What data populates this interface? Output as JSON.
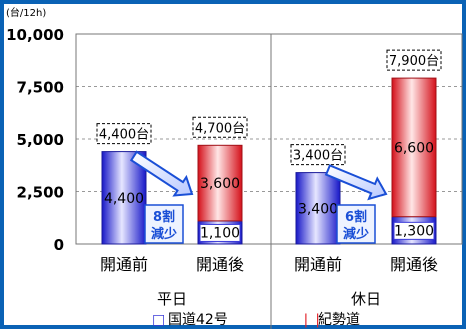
{
  "chart_data": {
    "type": "bar",
    "stacked": true,
    "unit_label": "(台/12h)",
    "y_ticks": [
      "10,000",
      "7,500",
      "5,000",
      "2,500",
      "0"
    ],
    "ylim": [
      0,
      10000
    ],
    "grid": true,
    "categories": [
      "開通前",
      "開通後",
      "開通前",
      "開通後"
    ],
    "groups": [
      "平日",
      "休日"
    ],
    "series": [
      {
        "name": "国道42号",
        "values": [
          4400,
          1100,
          3400,
          1300
        ],
        "labels": [
          "4,400",
          "1,100",
          "3,400",
          "1,300"
        ],
        "color": "#3b3bd9"
      },
      {
        "name": "紀勢道",
        "values": [
          0,
          3600,
          0,
          6600
        ],
        "labels": [
          "",
          "3,600",
          "",
          "6,600"
        ],
        "color": "#e3232b"
      }
    ],
    "totals": [
      "4,400台",
      "4,700台",
      "3,400台",
      "7,900台"
    ],
    "reductions": [
      {
        "line1": "8割",
        "line2": "減少"
      },
      {
        "line1": "6割",
        "line2": "減少"
      }
    ],
    "legend_placement": "bottom",
    "legend_markers": [
      "□",
      "❘❘"
    ],
    "colors": {
      "blue": "#3b3bd9",
      "red": "#e3232b",
      "border": "#0a62b5",
      "arrow": "#1a4fd6"
    }
  }
}
